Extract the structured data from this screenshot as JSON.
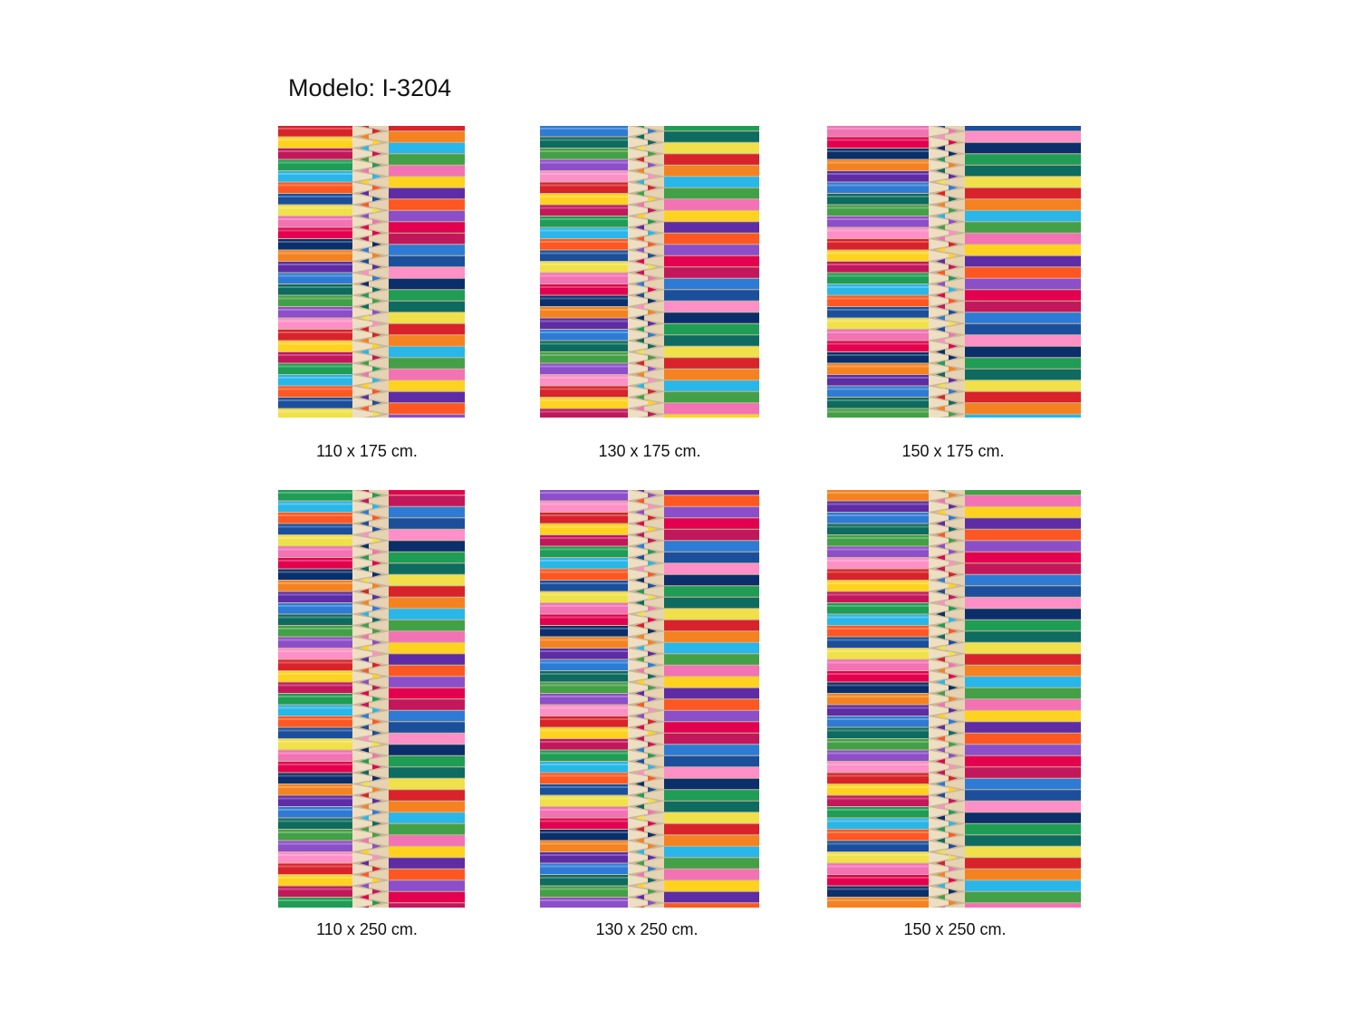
{
  "header": {
    "title": "Modelo: I-3204"
  },
  "panels": [
    {
      "caption": "110 x 175 cm."
    },
    {
      "caption": "130 x 175 cm."
    },
    {
      "caption": "150 x 175 cm."
    },
    {
      "caption": "110 x 250 cm."
    },
    {
      "caption": "130 x 250 cm."
    },
    {
      "caption": "150 x 250 cm."
    }
  ]
}
